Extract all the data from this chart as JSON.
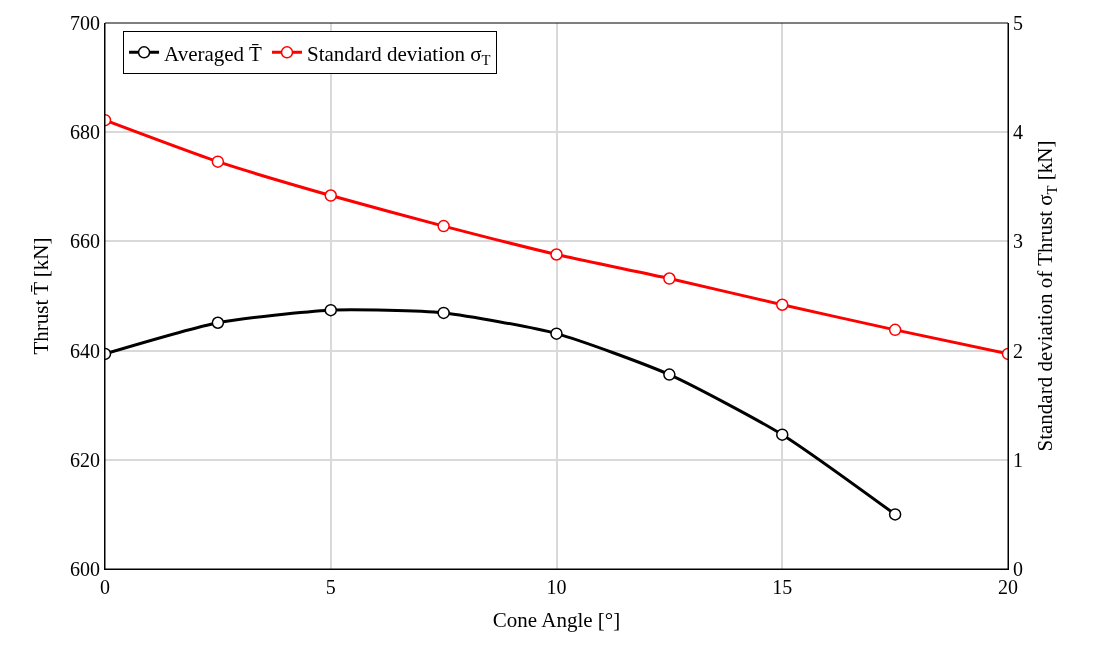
{
  "chart_data": {
    "type": "line",
    "xlabel": "Cone Angle [°]",
    "ylabel": "Thrust T̄ [kN]",
    "y2label": "Standard deviation of Thrust σ$_{T}$ [kN]",
    "x": [
      0,
      2.5,
      5,
      7.5,
      10,
      12.5,
      15,
      17.5,
      20
    ],
    "series": [
      {
        "name": "Averaged T̄",
        "color": "#000000",
        "values": [
          639.4,
          645.1,
          647.4,
          646.9,
          643.1,
          635.6,
          624.6,
          610.0,
          null
        ]
      },
      {
        "name": "Standard deviation σ$_{T}$",
        "color": "#ff0000",
        "axis": "y2",
        "values": [
          4.11,
          3.73,
          3.42,
          3.14,
          2.88,
          2.66,
          2.42,
          2.19,
          1.97
        ]
      }
    ],
    "xlim": [
      0,
      20
    ],
    "xticks": [
      0,
      5,
      10,
      15,
      20
    ],
    "ylim": [
      600,
      700
    ],
    "yticks": [
      600,
      620,
      640,
      660,
      680,
      700
    ],
    "y2lim": [
      0,
      5
    ],
    "y2ticks": [
      0,
      1,
      2,
      3,
      4,
      5
    ],
    "grid": true,
    "legend": "top left",
    "marker": "circle",
    "line_style": "solid"
  }
}
